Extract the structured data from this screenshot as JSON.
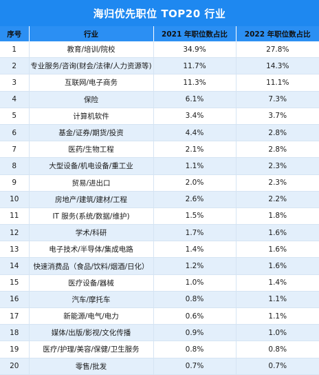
{
  "title": "海归优先职位 TOP20 行业",
  "headers": {
    "no": "序号",
    "industry": "行业",
    "y2021": "2021 年职位数占比",
    "y2022": "2022 年职位数占比"
  },
  "rows": [
    {
      "no": "1",
      "industry": "教育/培训/院校",
      "y2021": "34.9%",
      "y2022": "27.8%"
    },
    {
      "no": "2",
      "industry": "专业服务/咨询(财会/法律/人力资源等)",
      "y2021": "11.7%",
      "y2022": "14.3%"
    },
    {
      "no": "3",
      "industry": "互联网/电子商务",
      "y2021": "11.3%",
      "y2022": "11.1%"
    },
    {
      "no": "4",
      "industry": "保险",
      "y2021": "6.1%",
      "y2022": "7.3%"
    },
    {
      "no": "5",
      "industry": "计算机软件",
      "y2021": "3.4%",
      "y2022": "3.7%"
    },
    {
      "no": "6",
      "industry": "基金/证券/期货/投资",
      "y2021": "4.4%",
      "y2022": "2.8%"
    },
    {
      "no": "7",
      "industry": "医药/生物工程",
      "y2021": "2.1%",
      "y2022": "2.8%"
    },
    {
      "no": "8",
      "industry": "大型设备/机电设备/重工业",
      "y2021": "1.1%",
      "y2022": "2.3%"
    },
    {
      "no": "9",
      "industry": "贸易/进出口",
      "y2021": "2.0%",
      "y2022": "2.3%"
    },
    {
      "no": "10",
      "industry": "房地产/建筑/建材/工程",
      "y2021": "2.6%",
      "y2022": "2.2%"
    },
    {
      "no": "11",
      "industry": "IT 服务(系统/数据/维护)",
      "y2021": "1.5%",
      "y2022": "1.8%"
    },
    {
      "no": "12",
      "industry": "学术/科研",
      "y2021": "1.7%",
      "y2022": "1.6%"
    },
    {
      "no": "13",
      "industry": "电子技术/半导体/集成电路",
      "y2021": "1.4%",
      "y2022": "1.6%"
    },
    {
      "no": "14",
      "industry": "快速消费品（食品/饮料/烟酒/日化）",
      "y2021": "1.2%",
      "y2022": "1.6%"
    },
    {
      "no": "15",
      "industry": "医疗设备/器械",
      "y2021": "1.0%",
      "y2022": "1.4%"
    },
    {
      "no": "16",
      "industry": "汽车/摩托车",
      "y2021": "0.8%",
      "y2022": "1.1%"
    },
    {
      "no": "17",
      "industry": "新能源/电气/电力",
      "y2021": "0.6%",
      "y2022": "1.1%"
    },
    {
      "no": "18",
      "industry": "媒体/出版/影视/文化传播",
      "y2021": "0.9%",
      "y2022": "1.0%"
    },
    {
      "no": "19",
      "industry": "医疗/护理/美容/保健/卫生服务",
      "y2021": "0.8%",
      "y2022": "0.8%"
    },
    {
      "no": "20",
      "industry": "零售/批发",
      "y2021": "0.7%",
      "y2022": "0.7%"
    }
  ]
}
